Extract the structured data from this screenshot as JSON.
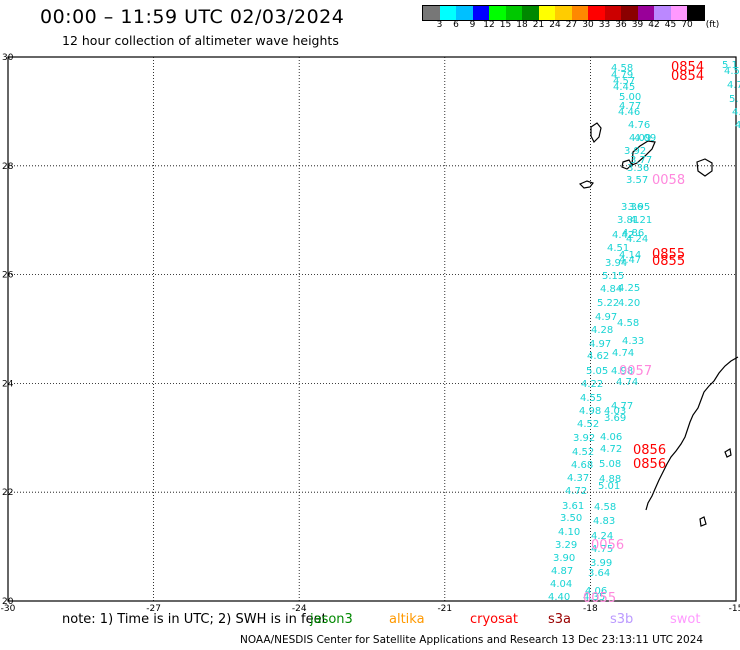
{
  "title": "00:00 – 11:59 UTC 02/03/2024",
  "subtitle": "12 hour collection of altimeter wave heights",
  "colorbar": {
    "unit": "(ft)",
    "labels": [
      "3",
      "6",
      "9",
      "12",
      "15",
      "18",
      "21",
      "24",
      "27",
      "30",
      "33",
      "36",
      "39",
      "42",
      "45",
      "70"
    ],
    "colors": [
      "#777777",
      "#00ffff",
      "#00c0ff",
      "#0000ff",
      "#00ff00",
      "#00c800",
      "#008800",
      "#ffff00",
      "#ffcc00",
      "#ff8800",
      "#ff0000",
      "#cc0000",
      "#8b0000",
      "#990099",
      "#bb88ff",
      "#ff99ff",
      "#000000"
    ]
  },
  "axes": {
    "lon_ticks": [
      "-30",
      "-27",
      "-24",
      "-21",
      "-18",
      "-15"
    ],
    "lat_ticks": [
      "30",
      "28",
      "26",
      "24",
      "22",
      "20"
    ]
  },
  "pass_labels": [
    {
      "text": "0854",
      "color": "#ff0000"
    },
    {
      "text": "0854",
      "color": "#ff0000"
    },
    {
      "text": "0058",
      "color": "#ff88dd"
    },
    {
      "text": "0855",
      "color": "#ff0000"
    },
    {
      "text": "0855",
      "color": "#ff0000"
    },
    {
      "text": "0057",
      "color": "#ff88dd"
    },
    {
      "text": "0856",
      "color": "#ff0000"
    },
    {
      "text": "0856",
      "color": "#ff0000"
    },
    {
      "text": "0056",
      "color": "#ff88dd"
    },
    {
      "text": "0055",
      "color": "#ff88dd"
    }
  ],
  "wave_values": [
    "4.58",
    "4.79",
    "4.57",
    "4.45",
    "5.00",
    "4.77",
    "4.46",
    "4.76",
    "4.09",
    "4.09",
    "3.92",
    "3.77",
    "3.36",
    "3.57",
    "3.36",
    "3.95",
    "3.81",
    "4.21",
    "4.42",
    "4.86",
    "4.51",
    "4.24",
    "3.94",
    "4.14",
    "4.47",
    "5.15",
    "4.84",
    "4.25",
    "5.22",
    "4.20",
    "4.97",
    "4.58",
    "4.28",
    "4.97",
    "4.33",
    "4.62",
    "4.74",
    "5.05",
    "4.98",
    "4.22",
    "4.74",
    "4.55",
    "4.77",
    "4.98",
    "4.03",
    "4.52",
    "3.69",
    "3.92",
    "4.06",
    "4.52",
    "4.72",
    "4.68",
    "5.08",
    "4.37",
    "4.88",
    "4.72",
    "5.01",
    "3.61",
    "4.58",
    "3.50",
    "4.83",
    "4.10",
    "4.24",
    "3.29",
    "4.75",
    "3.90",
    "3.99",
    "4.87",
    "3.64",
    "4.04",
    "4.06",
    "4.40",
    "4.35",
    "5.1",
    "4.5",
    "4.7",
    "5.",
    "4.",
    "4."
  ],
  "note": "note: 1) Time is in UTC; 2) SWH is in feet",
  "satellites": [
    {
      "name": "jason3",
      "color": "#008800"
    },
    {
      "name": "altika",
      "color": "#ff9900"
    },
    {
      "name": "cryosat",
      "color": "#ff0000"
    },
    {
      "name": "s3a",
      "color": "#990000"
    },
    {
      "name": "s3b",
      "color": "#bb99ff"
    },
    {
      "name": "swot",
      "color": "#ff99ff"
    }
  ],
  "footer": "NOAA/NESDIS Center for Satellite Applications and Research   13 Dec 23:13:11 UTC 2024"
}
